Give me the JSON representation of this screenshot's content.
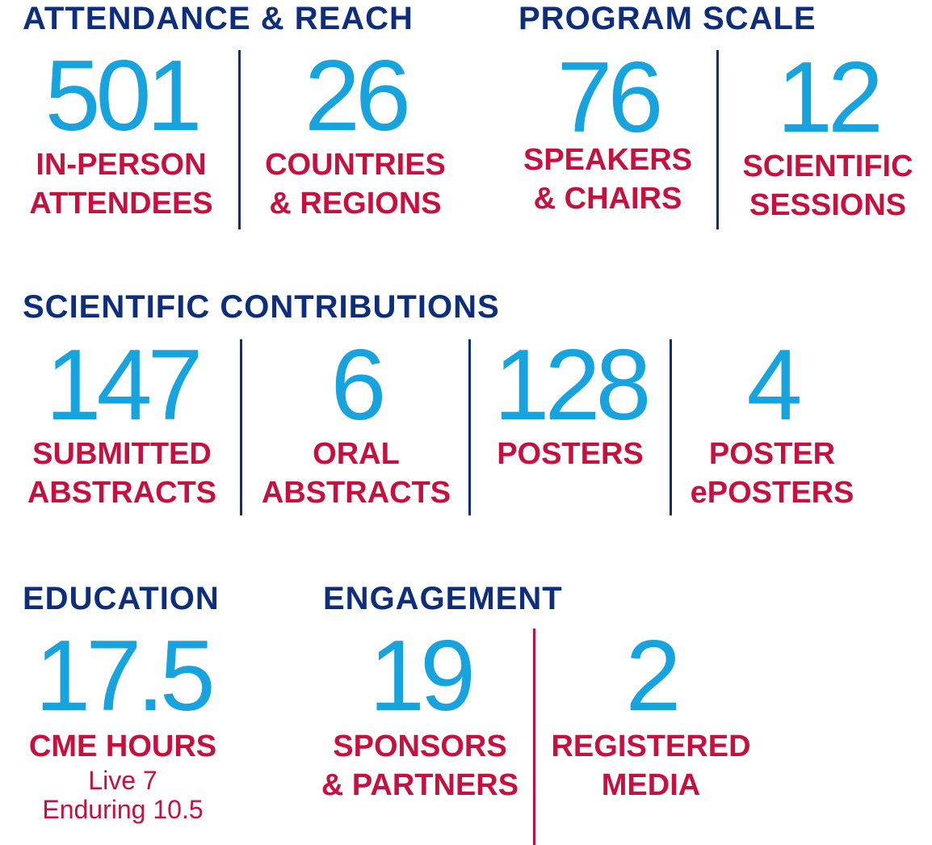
{
  "sections": {
    "attendance": {
      "heading": "ATTENDANCE & REACH",
      "stats": [
        {
          "value": "501",
          "label_1": "IN-PERSON",
          "label_2": "ATTENDEES"
        },
        {
          "value": "26",
          "label_1": "COUNTRIES",
          "label_2": "& REGIONS"
        }
      ]
    },
    "program": {
      "heading": "PROGRAM SCALE",
      "stats": [
        {
          "value": "76",
          "label_1": "SPEAKERS",
          "label_2": "& CHAIRS"
        },
        {
          "value": "12",
          "label_1": "SCIENTIFIC",
          "label_2": "SESSIONS"
        }
      ]
    },
    "contributions": {
      "heading": "SCIENTIFIC CONTRIBUTIONS",
      "stats": [
        {
          "value": "147",
          "label_1": "SUBMITTED",
          "label_2": "ABSTRACTS"
        },
        {
          "value": "6",
          "label_1": "ORAL",
          "label_2": "ABSTRACTS"
        },
        {
          "value": "128",
          "label_1": "POSTERS"
        },
        {
          "value": "4",
          "label_1": "POSTER",
          "label_2": "ePOSTERS"
        }
      ]
    },
    "education": {
      "heading": "EDUCATION",
      "stats": [
        {
          "value": "17.5",
          "label_1": "CME HOURS",
          "sub_1": "Live 7",
          "sub_2": "Enduring 10.5"
        }
      ]
    },
    "engagement": {
      "heading": "ENGAGEMENT",
      "stats": [
        {
          "value": "19",
          "label_1": "SPONSORS",
          "label_2": "& PARTNERS"
        },
        {
          "value": "2",
          "label_1": "REGISTERED",
          "label_2": "MEDIA"
        }
      ]
    }
  },
  "colors": {
    "heading": "#0d2e7c",
    "number": "#17a3dd",
    "label": "#c8103e",
    "divider_blue": "#0d2e7c",
    "divider_red": "#c8103e"
  }
}
